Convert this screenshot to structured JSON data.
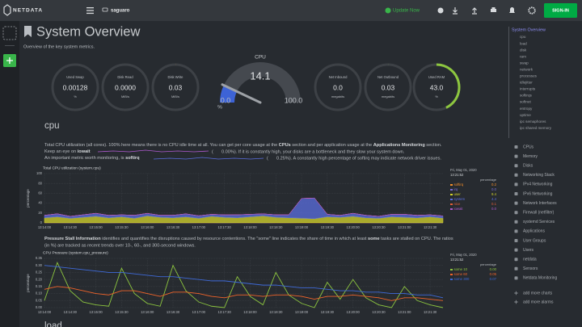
{
  "header": {
    "logo": "NETDATA",
    "host": "saguaro",
    "update": "Update Now",
    "signin": "SIGN-IN"
  },
  "overview": {
    "title": "System Overview",
    "subtitle": "Overview of the key system metrics.",
    "gauges": [
      {
        "style": "easypiechart",
        "title": "Used Swap",
        "value": 0.00128,
        "unit": "%",
        "color": "#8dc63f"
      },
      {
        "style": "easypiechart",
        "title": "Disk Read",
        "value": {
          "value": 0,
          "label": "0.0000"
        },
        "unit": "MiB/s",
        "color": "#e04e3a"
      },
      {
        "style": "easypiechart",
        "title": "Disk Write",
        "value": 0.03,
        "unit": "MiB/s",
        "color": "#f59a2b"
      },
      {
        "style": "gauge",
        "title": "CPU",
        "value": 14.1,
        "unit": "%",
        "min": {
          "value": 0,
          "label": "0.0"
        },
        "max": {
          "value": 100,
          "label": "100.0"
        },
        "color": "#3d63d6"
      },
      {
        "style": "easypiechart",
        "title": "Net Inbound",
        "value": {
          "value": 0,
          "label": "0.0"
        },
        "unit": "megabits",
        "color": "#8dc63f"
      },
      {
        "style": "easypiechart",
        "title": "Net Outbound",
        "value": 0.03,
        "unit": "megabits",
        "color": "#8dc63f"
      },
      {
        "style": "easypiechart",
        "title": "Used RAM",
        "value": {
          "value": 43,
          "label": "43.0"
        },
        "unit": "%",
        "color": "#8dc63f"
      }
    ]
  },
  "cpu_section": {
    "heading": "cpu",
    "line1": [
      "Total CPU utilization (all cores). 100% here means there is no CPU idle time at all. You can get per core usage at the ",
      "CPUs",
      " section and per application usage at the ",
      "Applications Monitoring",
      " section."
    ],
    "line2": [
      "Keep an eye on ",
      "iowait",
      "(",
      "0.00%). If it is constantly high, your disks are a bottleneck and they slow your system down."
    ],
    "line3": [
      "An important metric worth monitoring, is ",
      "softirq",
      "(",
      "0.25%). A constantly high percentage of softirq may indicate network driver issues."
    ]
  },
  "pressure_section": {
    "line1": [
      "Pressure Stall Information",
      " identifies and quantifies the disruptions caused by resource contentions. The \"some\" line indicates the share of time in which at least ",
      "some",
      " tasks are stalled on CPU. The ratios"
    ],
    "line2": "(in %) are tracked as recent trends over 10-, 60-, and 300-second windows."
  },
  "next_heading": "load",
  "nav": {
    "active": "System Overview",
    "sub": [
      "cpu",
      "load",
      "disk",
      "ram",
      "swap",
      "network",
      "processes",
      "idlejitter",
      "interrupts",
      "softirqs",
      "softnet",
      "entropy",
      "uptime",
      "ipc semaphores",
      "ipc shared memory"
    ],
    "sections": [
      "CPUs",
      "Memory",
      "Disks",
      "Networking Stack",
      "IPv4 Networking",
      "IPv6 Networking",
      "Network Interfaces",
      "Firewall (netfilter)",
      "systemd Services",
      "Applications",
      "User Groups",
      "Users",
      "netdata",
      "Sensors",
      "Netdata Monitoring"
    ],
    "actions": [
      "add more charts",
      "add more alarms"
    ]
  },
  "chart_data": [
    {
      "type": "area",
      "stacked": true,
      "title": "Total CPU utilization (system.cpu)",
      "date": "Fri, May 01, 2020",
      "time": "13:21:52",
      "ylabel": "percentage",
      "ylim": [
        0,
        100
      ],
      "yticks": [
        0,
        20,
        40,
        60,
        80,
        100
      ],
      "grid": true,
      "categories": [
        "13:14:00",
        null,
        "13:14:30",
        null,
        "13:15:00",
        null,
        "13:15:30",
        null,
        "13:16:00",
        null,
        "13:16:30",
        null,
        "13:17:00",
        null,
        "13:17:30",
        null,
        "13:18:00",
        null,
        "13:18:30",
        null,
        "13:19:00",
        null,
        "13:19:30",
        null,
        "13:20:00",
        null,
        "13:20:30",
        null,
        "13:21:00",
        null,
        "13:21:30",
        null
      ],
      "series": [
        {
          "name": "softirq",
          "color": "#f58f2a",
          "current": "0.2",
          "values": [
            0.3,
            0.3,
            0.2,
            0.3,
            0.3,
            0.2,
            0.3,
            0.3,
            0.2,
            0.3,
            0.3,
            0.2,
            0.3,
            0.3,
            0.2,
            0.3,
            0.3,
            0.2,
            0.3,
            0.3,
            0.4,
            0.4,
            0.3,
            0.2,
            0.3,
            0.3,
            0.2,
            0.3,
            0.3,
            0.2,
            0.3,
            0.2
          ]
        },
        {
          "name": "irq",
          "color": "#7a6ed4",
          "current": "0.0",
          "values": [
            0,
            0,
            0,
            0,
            0,
            0,
            0,
            0,
            0,
            0,
            0,
            0,
            0,
            0,
            0,
            0,
            0,
            0,
            0,
            0,
            0,
            0,
            0,
            0,
            0,
            0,
            0,
            0,
            0,
            0,
            0,
            0
          ]
        },
        {
          "name": "user",
          "color": "#d5d52b",
          "current": "9.4",
          "values": [
            10,
            12,
            9,
            11,
            13,
            10,
            12,
            9,
            14,
            11,
            10,
            12,
            9,
            13,
            11,
            10,
            12,
            14,
            11,
            10,
            9,
            8,
            12,
            11,
            13,
            10,
            9,
            12,
            11,
            10,
            12,
            9.4
          ]
        },
        {
          "name": "system",
          "color": "#5b6fe0",
          "current": "4.4",
          "values": [
            5,
            6,
            4,
            5,
            6,
            5,
            4,
            6,
            5,
            4,
            5,
            6,
            5,
            4,
            5,
            6,
            5,
            4,
            5,
            6,
            40,
            42,
            5,
            4,
            6,
            5,
            4,
            5,
            6,
            5,
            4,
            4.4
          ]
        },
        {
          "name": "nice",
          "color": "#e35e38",
          "current": "0.1",
          "values": [
            0.1,
            0.1,
            0.1,
            0.1,
            0.1,
            0.1,
            0.1,
            0.1,
            0.1,
            0.1,
            0.1,
            0.1,
            0.1,
            0.1,
            0.1,
            0.1,
            0.1,
            0.1,
            0.1,
            0.1,
            0.1,
            0.1,
            0.1,
            0.1,
            0.1,
            0.1,
            0.1,
            0.1,
            0.1,
            0.1,
            0.1,
            0.1
          ]
        },
        {
          "name": "iowait",
          "color": "#b05bd1",
          "current": "0.0",
          "values": [
            0,
            0,
            0,
            0,
            0,
            0,
            0,
            0,
            0,
            0,
            0,
            0,
            0,
            0,
            0,
            0,
            0,
            0,
            0,
            0,
            0,
            0,
            0,
            0,
            0,
            0,
            0,
            0,
            0,
            0,
            0,
            0
          ]
        }
      ]
    },
    {
      "type": "line",
      "title": "CPU Pressure (system.cpu_pressure)",
      "date": "Fri, May 01, 2020",
      "time": "13:21:52",
      "ylabel": "percentage",
      "ylim": [
        0,
        0.35
      ],
      "yticks": [
        {
          "value": 0,
          "label": "0.00"
        },
        0.05,
        {
          "value": 0.1,
          "label": "0.10"
        },
        0.15,
        {
          "value": 0.2,
          "label": "0.20"
        },
        0.25,
        {
          "value": 0.3,
          "label": "0.30"
        },
        0.35
      ],
      "grid": true,
      "categories": [
        "13:14:00",
        null,
        "13:14:30",
        null,
        "13:15:00",
        null,
        "13:15:30",
        null,
        "13:16:00",
        null,
        "13:16:30",
        null,
        "13:17:00",
        null,
        "13:17:30",
        null,
        "13:18:00",
        null,
        "13:18:30",
        null,
        "13:19:00",
        null,
        "13:19:30",
        null,
        "13:20:00",
        null,
        "13:20:30",
        null,
        "13:21:00",
        null,
        "13:21:30",
        null
      ],
      "series": [
        {
          "name": "some 10",
          "color": "#8dc63f",
          "current": "0.00",
          "values": [
            0.05,
            0.32,
            0.12,
            0.04,
            0.02,
            0.01,
            0.28,
            0.1,
            0.03,
            0.01,
            0.3,
            0.12,
            0.04,
            0.01,
            0.0,
            0.22,
            0.08,
            0.02,
            0.25,
            0.09,
            0.03,
            0.0,
            0.18,
            0.06,
            0.2,
            0.07,
            0.02,
            0.0,
            0.15,
            0.05,
            0.02,
            0.0
          ]
        },
        {
          "name": "some 60",
          "color": "#f0642a",
          "current": "0.05",
          "values": [
            0.13,
            0.15,
            0.14,
            0.12,
            0.1,
            0.09,
            0.12,
            0.12,
            0.1,
            0.08,
            0.11,
            0.11,
            0.1,
            0.08,
            0.07,
            0.09,
            0.09,
            0.08,
            0.09,
            0.09,
            0.08,
            0.06,
            0.08,
            0.08,
            0.09,
            0.08,
            0.07,
            0.05,
            0.07,
            0.07,
            0.06,
            0.05
          ]
        },
        {
          "name": "some 300",
          "color": "#3f6ad8",
          "current": "0.07",
          "values": [
            0.3,
            0.29,
            0.28,
            0.27,
            0.26,
            0.25,
            0.25,
            0.24,
            0.23,
            0.22,
            0.22,
            0.21,
            0.2,
            0.19,
            0.19,
            0.18,
            0.17,
            0.16,
            0.16,
            0.15,
            0.14,
            0.14,
            0.13,
            0.12,
            0.12,
            0.11,
            0.11,
            0.1,
            0.1,
            0.09,
            0.09,
            0.07
          ]
        }
      ]
    }
  ]
}
